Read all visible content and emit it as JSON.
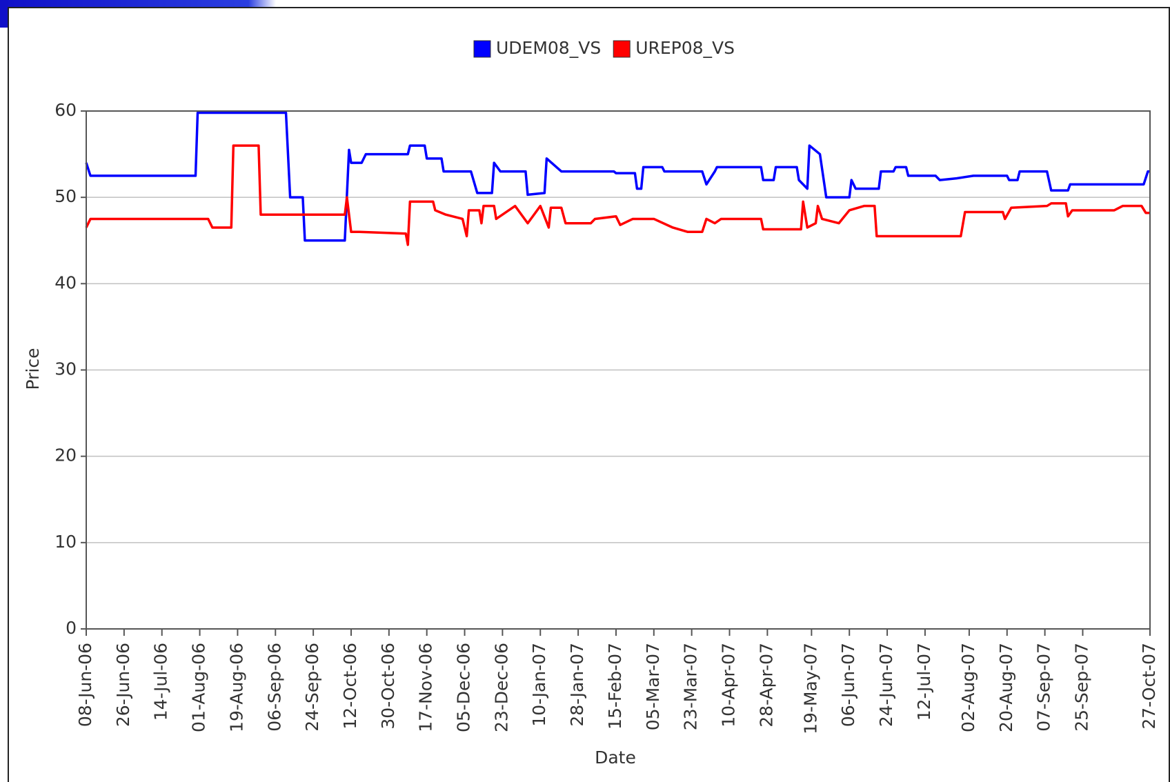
{
  "chart_data": {
    "type": "line",
    "x_label": "Date",
    "y_label": "Price",
    "xlim": [
      "2006-06-08",
      "2007-10-27"
    ],
    "ylim": [
      0,
      60
    ],
    "yticks": [
      0,
      10,
      20,
      30,
      40,
      50,
      60
    ],
    "grid": true,
    "legend": "top",
    "xticks": [
      {
        "value": "2006-06-08",
        "label": "08-Jun-06"
      },
      {
        "value": "2006-06-26",
        "label": "26-Jun-06"
      },
      {
        "value": "2006-07-14",
        "label": "14-Jul-06"
      },
      {
        "value": "2006-08-01",
        "label": "01-Aug-06"
      },
      {
        "value": "2006-08-19",
        "label": "19-Aug-06"
      },
      {
        "value": "2006-09-06",
        "label": "06-Sep-06"
      },
      {
        "value": "2006-09-24",
        "label": "24-Sep-06"
      },
      {
        "value": "2006-10-12",
        "label": "12-Oct-06"
      },
      {
        "value": "2006-10-30",
        "label": "30-Oct-06"
      },
      {
        "value": "2006-11-17",
        "label": "17-Nov-06"
      },
      {
        "value": "2006-12-05",
        "label": "05-Dec-06"
      },
      {
        "value": "2006-12-23",
        "label": "23-Dec-06"
      },
      {
        "value": "2007-01-10",
        "label": "10-Jan-07"
      },
      {
        "value": "2007-01-28",
        "label": "28-Jan-07"
      },
      {
        "value": "2007-02-15",
        "label": "15-Feb-07"
      },
      {
        "value": "2007-03-05",
        "label": "05-Mar-07"
      },
      {
        "value": "2007-03-23",
        "label": "23-Mar-07"
      },
      {
        "value": "2007-04-10",
        "label": "10-Apr-07"
      },
      {
        "value": "2007-04-28",
        "label": "28-Apr-07"
      },
      {
        "value": "2007-05-19",
        "label": "19-May-07"
      },
      {
        "value": "2007-06-06",
        "label": "06-Jun-07"
      },
      {
        "value": "2007-06-24",
        "label": "24-Jun-07"
      },
      {
        "value": "2007-07-12",
        "label": "12-Jul-07"
      },
      {
        "value": "2007-08-02",
        "label": "02-Aug-07"
      },
      {
        "value": "2007-08-20",
        "label": "20-Aug-07"
      },
      {
        "value": "2007-09-07",
        "label": "07-Sep-07"
      },
      {
        "value": "2007-09-25",
        "label": "25-Sep-07"
      },
      {
        "value": "2007-10-27",
        "label": "27-Oct-07"
      }
    ],
    "series": [
      {
        "name": "UDEM08_VS",
        "color": "#0000ff",
        "x": [
          "2006-06-08",
          "2006-06-10",
          "2006-07-30",
          "2006-07-31",
          "2006-09-11",
          "2006-09-13",
          "2006-09-19",
          "2006-09-20",
          "2006-10-09",
          "2006-10-11",
          "2006-10-12",
          "2006-10-17",
          "2006-10-19",
          "2006-11-08",
          "2006-11-09",
          "2006-11-16",
          "2006-11-17",
          "2006-11-24",
          "2006-11-25",
          "2006-12-08",
          "2006-12-11",
          "2006-12-18",
          "2006-12-19",
          "2006-12-22",
          "2007-01-03",
          "2007-01-04",
          "2007-01-12",
          "2007-01-13",
          "2007-01-20",
          "2007-02-14",
          "2007-02-15",
          "2007-02-24",
          "2007-02-25",
          "2007-02-27",
          "2007-02-28",
          "2007-03-09",
          "2007-03-10",
          "2007-03-28",
          "2007-03-30",
          "2007-04-03",
          "2007-04-04",
          "2007-04-25",
          "2007-04-26",
          "2007-05-01",
          "2007-05-02",
          "2007-05-12",
          "2007-05-13",
          "2007-05-17",
          "2007-05-18",
          "2007-05-23",
          "2007-05-26",
          "2007-06-06",
          "2007-06-07",
          "2007-06-09",
          "2007-06-20",
          "2007-06-21",
          "2007-06-27",
          "2007-06-28",
          "2007-07-03",
          "2007-07-04",
          "2007-07-17",
          "2007-07-19",
          "2007-07-27",
          "2007-08-04",
          "2007-08-20",
          "2007-08-21",
          "2007-08-25",
          "2007-08-26",
          "2007-09-08",
          "2007-09-10",
          "2007-09-18",
          "2007-09-19",
          "2007-10-24",
          "2007-10-26",
          "2007-10-27"
        ],
        "values": [
          54,
          52.5,
          52.5,
          59.8,
          59.8,
          50,
          50,
          45,
          45,
          55.5,
          54,
          54,
          55,
          55,
          56,
          56,
          54.5,
          54.5,
          53,
          53,
          50.5,
          50.5,
          54,
          53,
          53,
          50.3,
          50.5,
          54.5,
          53,
          53,
          52.8,
          52.8,
          51,
          51,
          53.5,
          53.5,
          53,
          53,
          51.5,
          53,
          53.5,
          53.5,
          52,
          52,
          53.5,
          53.5,
          52,
          51,
          56,
          55,
          50,
          50,
          52,
          51,
          51,
          53,
          53,
          53.5,
          53.5,
          52.5,
          52.5,
          52,
          52.2,
          52.5,
          52.5,
          52,
          52,
          53,
          53,
          50.8,
          50.8,
          51.5,
          51.5,
          53,
          53
        ]
      },
      {
        "name": "UREP08_VS",
        "color": "#ff0000",
        "x": [
          "2006-06-08",
          "2006-06-10",
          "2006-08-05",
          "2006-08-07",
          "2006-08-16",
          "2006-08-17",
          "2006-08-29",
          "2006-08-30",
          "2006-10-09",
          "2006-10-10",
          "2006-10-12",
          "2006-10-16",
          "2006-11-07",
          "2006-11-08",
          "2006-11-09",
          "2006-11-20",
          "2006-11-21",
          "2006-11-26",
          "2006-12-04",
          "2006-12-06",
          "2006-12-07",
          "2006-12-12",
          "2006-12-13",
          "2006-12-14",
          "2006-12-19",
          "2006-12-20",
          "2006-12-26",
          "2006-12-29",
          "2007-01-04",
          "2007-01-10",
          "2007-01-14",
          "2007-01-15",
          "2007-01-20",
          "2007-01-22",
          "2007-02-03",
          "2007-02-05",
          "2007-02-15",
          "2007-02-17",
          "2007-02-23",
          "2007-03-05",
          "2007-03-14",
          "2007-03-21",
          "2007-03-28",
          "2007-03-30",
          "2007-04-03",
          "2007-04-06",
          "2007-04-25",
          "2007-04-26",
          "2007-05-14",
          "2007-05-15",
          "2007-05-17",
          "2007-05-21",
          "2007-05-22",
          "2007-05-24",
          "2007-06-01",
          "2007-06-06",
          "2007-06-13",
          "2007-06-18",
          "2007-06-19",
          "2007-07-29",
          "2007-07-31",
          "2007-08-18",
          "2007-08-19",
          "2007-08-22",
          "2007-09-08",
          "2007-09-10",
          "2007-09-17",
          "2007-09-18",
          "2007-09-20",
          "2007-10-10",
          "2007-10-14",
          "2007-10-23",
          "2007-10-25",
          "2007-10-27"
        ],
        "values": [
          46.5,
          47.5,
          47.5,
          46.5,
          46.5,
          56,
          56,
          48,
          48,
          50,
          46,
          46,
          45.8,
          44.5,
          49.5,
          49.5,
          48.5,
          48,
          47.5,
          45.5,
          48.5,
          48.5,
          47,
          49,
          49,
          47.5,
          48.5,
          49,
          47,
          49,
          46.5,
          48.8,
          48.8,
          47,
          47,
          47.5,
          47.8,
          46.8,
          47.5,
          47.5,
          46.5,
          46,
          46,
          47.5,
          47,
          47.5,
          47.5,
          46.3,
          46.3,
          49.5,
          46.5,
          47,
          49,
          47.5,
          47,
          48.5,
          49,
          49,
          45.5,
          45.5,
          48.3,
          48.3,
          47.5,
          48.8,
          49,
          49.3,
          49.3,
          47.8,
          48.5,
          48.5,
          49,
          49,
          48.2,
          48.2
        ]
      }
    ]
  }
}
